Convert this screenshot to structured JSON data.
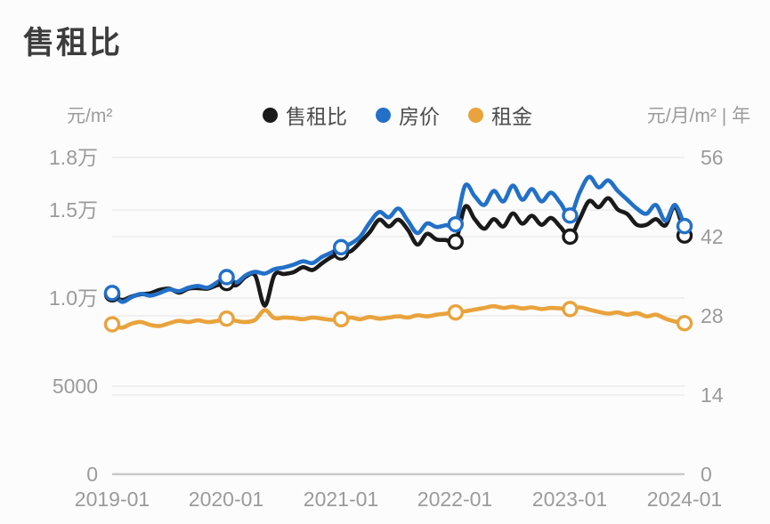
{
  "title": "售租比",
  "legend": {
    "items": [
      {
        "key": "sale-rent-ratio",
        "label": "售租比",
        "color": "#1a1a1a"
      },
      {
        "key": "house-price",
        "label": "房价",
        "color": "#2270c8"
      },
      {
        "key": "rent",
        "label": "租金",
        "color": "#e9a33c"
      }
    ]
  },
  "axes": {
    "left": {
      "unit": "元/m²",
      "ticks": [
        {
          "label": "1.8万",
          "value": 18000
        },
        {
          "label": "1.5万",
          "value": 15000
        },
        {
          "label": "1.0万",
          "value": 10000
        },
        {
          "label": "5000",
          "value": 5000
        },
        {
          "label": "0",
          "value": 0
        }
      ]
    },
    "right": {
      "unit": "元/月/m² | 年",
      "ticks": [
        {
          "label": "56",
          "value": 56
        },
        {
          "label": "42",
          "value": 42
        },
        {
          "label": "28",
          "value": 28
        },
        {
          "label": "14",
          "value": 14
        },
        {
          "label": "0",
          "value": 0
        }
      ]
    },
    "x": {
      "labels": [
        "2019-01",
        "2020-01",
        "2021-01",
        "2022-01",
        "2023-01",
        "2024-01"
      ]
    }
  },
  "chart_data": {
    "type": "line",
    "title": "售租比",
    "x_start": "2019-01",
    "x_end": "2024-01",
    "x_frequency": "monthly",
    "x_tick_labels": [
      "2019-01",
      "2020-01",
      "2021-01",
      "2022-01",
      "2023-01",
      "2024-01"
    ],
    "left_axis_label": "元/m²",
    "right_axis_label": "元/月/m² | 年",
    "left_axis_range": [
      0,
      18000
    ],
    "right_axis_range": [
      0,
      56
    ],
    "grid": true,
    "legend_position": "top",
    "marker_every": 12,
    "series": [
      {
        "name": "租金",
        "key": "rent",
        "axis": "right",
        "unit": "元/月/m²",
        "color": "#e9a33c",
        "values": [
          26.5,
          25.9,
          26.6,
          26.9,
          26.4,
          26.2,
          26.7,
          27.1,
          26.9,
          27.2,
          26.9,
          27.1,
          27.5,
          27.1,
          26.9,
          27.3,
          29.0,
          27.6,
          27.7,
          27.6,
          27.4,
          27.7,
          27.5,
          27.3,
          27.4,
          27.7,
          27.4,
          27.8,
          27.5,
          27.7,
          27.9,
          27.7,
          28.1,
          27.9,
          28.2,
          28.4,
          28.6,
          28.8,
          29.1,
          29.4,
          29.7,
          29.4,
          29.6,
          29.3,
          29.5,
          29.2,
          29.4,
          29.3,
          29.2,
          29.5,
          29.1,
          28.7,
          28.4,
          28.6,
          28.2,
          28.5,
          27.9,
          28.2,
          27.5,
          27.0,
          26.7
        ]
      },
      {
        "name": "售租比",
        "key": "sale-rent-ratio",
        "axis": "right",
        "unit": "年",
        "color": "#1a1a1a",
        "values": [
          31.8,
          30.8,
          31.4,
          31.8,
          32.0,
          32.6,
          32.8,
          32.1,
          32.8,
          32.9,
          32.8,
          33.4,
          33.8,
          33.4,
          34.9,
          35.1,
          29.8,
          35.2,
          35.4,
          35.7,
          36.6,
          36.1,
          37.3,
          38.4,
          39.2,
          39.4,
          41.0,
          42.8,
          45.0,
          43.8,
          45.0,
          43.2,
          40.6,
          42.5,
          41.5,
          41.4,
          41.1,
          47.3,
          45.1,
          43.4,
          45.1,
          43.8,
          46.1,
          44.3,
          45.7,
          44.1,
          45.3,
          43.7,
          42.0,
          45.1,
          48.3,
          47.2,
          48.8,
          46.8,
          46.0,
          44.1,
          44.1,
          45.1,
          44.0,
          47.3,
          42.2
        ]
      },
      {
        "name": "房价",
        "key": "house-price",
        "axis": "left",
        "unit": "元/m²",
        "color": "#2270c8",
        "values": [
          10300,
          9800,
          10050,
          10250,
          10150,
          10300,
          10500,
          10400,
          10600,
          10700,
          10600,
          10900,
          11200,
          10900,
          11300,
          11500,
          11400,
          11650,
          11750,
          11900,
          12100,
          12000,
          12350,
          12600,
          12900,
          13100,
          13500,
          14300,
          14900,
          14600,
          15100,
          14400,
          13700,
          14250,
          14050,
          14150,
          14200,
          16400,
          15800,
          15300,
          16100,
          15500,
          16400,
          15600,
          16200,
          15500,
          16000,
          15400,
          14700,
          16000,
          16900,
          16300,
          16700,
          16100,
          15600,
          15100,
          14800,
          15300,
          14400,
          15300,
          14100
        ]
      }
    ]
  },
  "colors": {
    "background": "#fcfcfc",
    "grid": "#e8e8e8",
    "axis_line": "#c9c9c9",
    "tick_text": "#9b9b9b",
    "title_text": "#3d3d3d",
    "legend_text": "#4d4d4d"
  }
}
